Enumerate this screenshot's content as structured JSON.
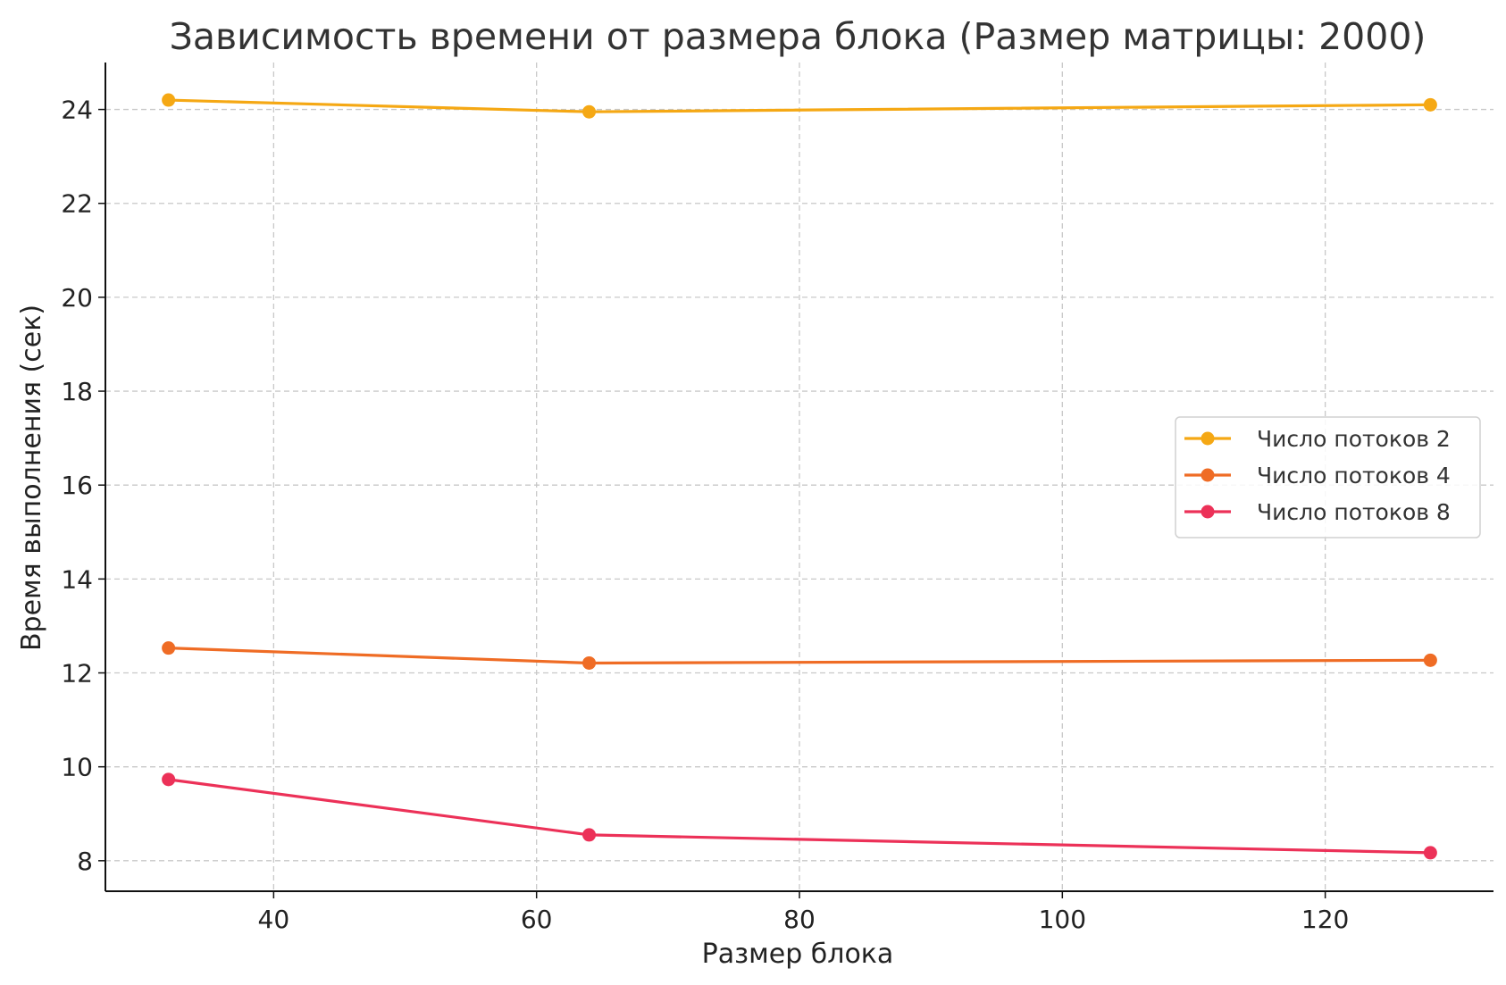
{
  "chart_data": {
    "type": "line",
    "title": "Зависимость времени от размера блока (Размер матрицы: 2000)",
    "xlabel": "Размер блока",
    "ylabel": "Время выполнения (сек)",
    "x": [
      32,
      64,
      128
    ],
    "xlim": [
      27.2,
      132.8
    ],
    "ylim": [
      7.35,
      25.0
    ],
    "xticks": [
      40,
      60,
      80,
      100,
      120
    ],
    "yticks": [
      8,
      10,
      12,
      14,
      16,
      18,
      20,
      22,
      24
    ],
    "grid": true,
    "legend_position": "center-right",
    "series": [
      {
        "name": "Число потоков 2",
        "color": "#f5a814",
        "values": [
          24.2,
          23.95,
          24.1
        ]
      },
      {
        "name": "Число потоков 4",
        "color": "#ef6c25",
        "values": [
          12.53,
          12.21,
          12.27
        ]
      },
      {
        "name": "Число потоков 8",
        "color": "#ec3158",
        "values": [
          9.73,
          8.55,
          8.17
        ]
      }
    ]
  }
}
